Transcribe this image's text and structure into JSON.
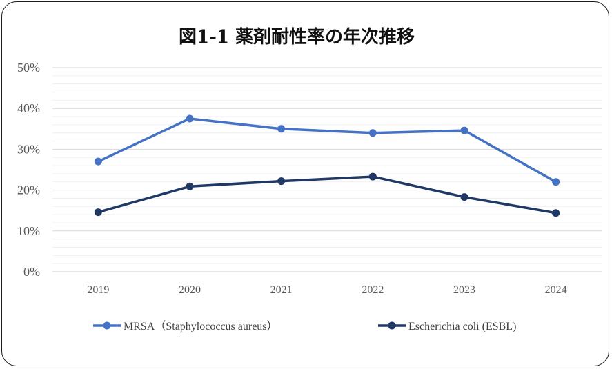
{
  "chart_data": {
    "type": "line",
    "title": "図1-1 薬剤耐性率の年次推移",
    "categories": [
      "2019",
      "2020",
      "2021",
      "2022",
      "2023",
      "2024"
    ],
    "ylim": [
      0,
      50
    ],
    "yticks": [
      "0%",
      "10%",
      "20%",
      "30%",
      "40%",
      "50%"
    ],
    "ytick_values": [
      0,
      10,
      20,
      30,
      40,
      50
    ],
    "grid": true,
    "legend": "bottom",
    "series": [
      {
        "name": "MRSA（Staphylococcus aureus）",
        "values": [
          27.0,
          37.5,
          35.0,
          34.0,
          34.6,
          22.0
        ],
        "color": "#4472C4"
      },
      {
        "name": "Escherichia coli (ESBL)",
        "values": [
          14.6,
          20.9,
          22.2,
          23.3,
          18.3,
          14.4
        ],
        "color": "#203864"
      }
    ]
  }
}
